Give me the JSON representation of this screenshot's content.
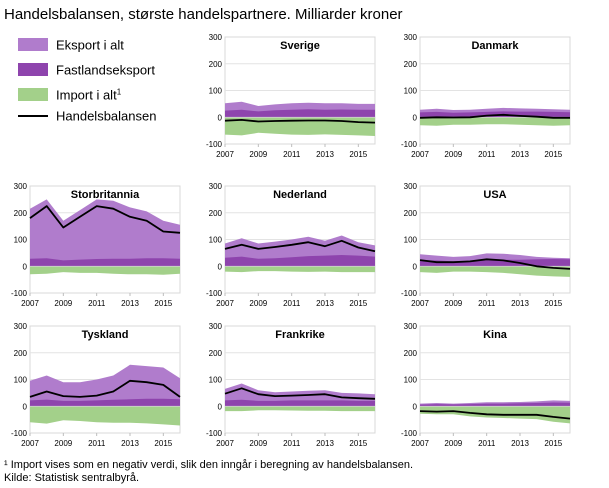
{
  "title": "Handelsbalansen, største handelspartnere. Milliarder kroner",
  "footnote": "¹ Import  vises som en negativ verdi, slik den inngår i beregning av handelsbalansen.",
  "source": "Kilde: Statistisk sentralbyrå.",
  "legend": [
    {
      "label": "Eksport i alt",
      "color": "#b07ccc"
    },
    {
      "label": "Fastlandseksport",
      "color": "#8e44ad"
    },
    {
      "label": "Import i alt",
      "sup": "1",
      "color": "#a3d08a"
    },
    {
      "label": "Handelsbalansen",
      "color": "#000000"
    }
  ],
  "chart_data": [
    {
      "type": "area",
      "title": "Sverige",
      "x": [
        2007,
        2008,
        2009,
        2010,
        2011,
        2012,
        2013,
        2014,
        2015,
        2016
      ],
      "ylim": [
        -100,
        300
      ],
      "yticks": [
        -100,
        0,
        100,
        200,
        300
      ],
      "xticks": [
        2007,
        2009,
        2011,
        2013,
        2015
      ],
      "series": [
        {
          "name": "Eksport i alt",
          "values": [
            52,
            58,
            42,
            48,
            52,
            54,
            52,
            52,
            50,
            50
          ]
        },
        {
          "name": "Fastlandseksport",
          "values": [
            25,
            28,
            22,
            26,
            28,
            30,
            28,
            29,
            28,
            28
          ]
        },
        {
          "name": "Import i alt",
          "values": [
            -65,
            -68,
            -58,
            -62,
            -65,
            -66,
            -64,
            -66,
            -68,
            -70
          ]
        },
        {
          "name": "Handelsbalansen",
          "values": [
            -13,
            -10,
            -16,
            -14,
            -13,
            -12,
            -12,
            -14,
            -18,
            -20
          ]
        }
      ]
    },
    {
      "type": "area",
      "title": "Danmark",
      "x": [
        2007,
        2008,
        2009,
        2010,
        2011,
        2012,
        2013,
        2014,
        2015,
        2016
      ],
      "ylim": [
        -100,
        300
      ],
      "yticks": [
        -100,
        0,
        100,
        200,
        300
      ],
      "xticks": [
        2007,
        2009,
        2011,
        2013,
        2015
      ],
      "series": [
        {
          "name": "Eksport i alt",
          "values": [
            28,
            32,
            27,
            28,
            32,
            35,
            33,
            32,
            30,
            28
          ]
        },
        {
          "name": "Fastlandseksport",
          "values": [
            18,
            20,
            17,
            18,
            20,
            22,
            21,
            21,
            20,
            19
          ]
        },
        {
          "name": "Import i alt",
          "values": [
            -30,
            -32,
            -28,
            -28,
            -26,
            -26,
            -28,
            -30,
            -32,
            -30
          ]
        },
        {
          "name": "Handelsbalansen",
          "values": [
            -2,
            0,
            -1,
            0,
            6,
            9,
            5,
            2,
            -2,
            -2
          ]
        }
      ]
    },
    {
      "type": "area",
      "title": "Storbritannia",
      "x": [
        2007,
        2008,
        2009,
        2010,
        2011,
        2012,
        2013,
        2014,
        2015,
        2016
      ],
      "ylim": [
        -100,
        300
      ],
      "yticks": [
        -100,
        0,
        100,
        200,
        300
      ],
      "xticks": [
        2007,
        2009,
        2011,
        2013,
        2015
      ],
      "series": [
        {
          "name": "Eksport i alt",
          "values": [
            215,
            250,
            170,
            210,
            250,
            245,
            220,
            205,
            170,
            155
          ]
        },
        {
          "name": "Fastlandseksport",
          "values": [
            28,
            30,
            22,
            25,
            27,
            28,
            28,
            30,
            30,
            28
          ]
        },
        {
          "name": "Import i alt",
          "values": [
            -30,
            -28,
            -22,
            -25,
            -25,
            -28,
            -30,
            -30,
            -32,
            -28
          ]
        },
        {
          "name": "Handelsbalansen",
          "values": [
            180,
            225,
            145,
            185,
            225,
            215,
            185,
            170,
            130,
            125
          ]
        }
      ]
    },
    {
      "type": "area",
      "title": "Nederland",
      "x": [
        2007,
        2008,
        2009,
        2010,
        2011,
        2012,
        2013,
        2014,
        2015,
        2016
      ],
      "ylim": [
        -100,
        300
      ],
      "yticks": [
        -100,
        0,
        100,
        200,
        300
      ],
      "xticks": [
        2007,
        2009,
        2011,
        2013,
        2015
      ],
      "series": [
        {
          "name": "Eksport i alt",
          "values": [
            85,
            105,
            85,
            92,
            100,
            110,
            95,
            115,
            90,
            78
          ]
        },
        {
          "name": "Fastlandseksport",
          "values": [
            32,
            36,
            28,
            30,
            34,
            38,
            40,
            42,
            40,
            36
          ]
        },
        {
          "name": "Import i alt",
          "values": [
            -20,
            -22,
            -18,
            -18,
            -20,
            -21,
            -20,
            -22,
            -22,
            -22
          ]
        },
        {
          "name": "Handelsbalansen",
          "values": [
            65,
            80,
            65,
            72,
            80,
            90,
            75,
            95,
            70,
            56
          ]
        }
      ]
    },
    {
      "type": "area",
      "title": "USA",
      "x": [
        2007,
        2008,
        2009,
        2010,
        2011,
        2012,
        2013,
        2014,
        2015,
        2016
      ],
      "ylim": [
        -100,
        300
      ],
      "yticks": [
        -100,
        0,
        100,
        200,
        300
      ],
      "xticks": [
        2007,
        2009,
        2011,
        2013,
        2015
      ],
      "series": [
        {
          "name": "Eksport i alt",
          "values": [
            45,
            40,
            35,
            38,
            48,
            47,
            42,
            35,
            32,
            30
          ]
        },
        {
          "name": "Fastlandseksport",
          "values": [
            22,
            22,
            18,
            20,
            22,
            24,
            24,
            26,
            27,
            26
          ]
        },
        {
          "name": "Import i alt",
          "values": [
            -22,
            -25,
            -20,
            -20,
            -22,
            -25,
            -30,
            -35,
            -38,
            -40
          ]
        },
        {
          "name": "Handelsbalansen",
          "values": [
            23,
            15,
            15,
            18,
            26,
            22,
            12,
            0,
            -6,
            -10
          ]
        }
      ]
    },
    {
      "type": "area",
      "title": "Tyskland",
      "x": [
        2007,
        2008,
        2009,
        2010,
        2011,
        2012,
        2013,
        2014,
        2015,
        2016
      ],
      "ylim": [
        -100,
        300
      ],
      "yticks": [
        -100,
        0,
        100,
        200,
        300
      ],
      "xticks": [
        2007,
        2009,
        2011,
        2013,
        2015
      ],
      "series": [
        {
          "name": "Eksport i alt",
          "values": [
            95,
            115,
            90,
            90,
            100,
            115,
            155,
            150,
            145,
            105
          ]
        },
        {
          "name": "Fastlandseksport",
          "values": [
            22,
            25,
            20,
            20,
            22,
            24,
            26,
            28,
            28,
            26
          ]
        },
        {
          "name": "Import i alt",
          "values": [
            -60,
            -65,
            -52,
            -55,
            -60,
            -62,
            -62,
            -64,
            -68,
            -72
          ]
        },
        {
          "name": "Handelsbalansen",
          "values": [
            35,
            55,
            38,
            35,
            40,
            55,
            95,
            90,
            80,
            35
          ]
        }
      ]
    },
    {
      "type": "area",
      "title": "Frankrike",
      "x": [
        2007,
        2008,
        2009,
        2010,
        2011,
        2012,
        2013,
        2014,
        2015,
        2016
      ],
      "ylim": [
        -100,
        300
      ],
      "yticks": [
        -100,
        0,
        100,
        200,
        300
      ],
      "xticks": [
        2007,
        2009,
        2011,
        2013,
        2015
      ],
      "series": [
        {
          "name": "Eksport i alt",
          "values": [
            65,
            85,
            60,
            52,
            55,
            58,
            60,
            50,
            48,
            45
          ]
        },
        {
          "name": "Fastlandseksport",
          "values": [
            22,
            24,
            20,
            20,
            22,
            22,
            22,
            22,
            20,
            20
          ]
        },
        {
          "name": "Import i alt",
          "values": [
            -18,
            -18,
            -15,
            -15,
            -16,
            -17,
            -17,
            -18,
            -18,
            -18
          ]
        },
        {
          "name": "Handelsbalansen",
          "values": [
            47,
            67,
            45,
            38,
            40,
            42,
            45,
            33,
            30,
            28
          ]
        }
      ]
    },
    {
      "type": "area",
      "title": "Kina",
      "x": [
        2007,
        2008,
        2009,
        2010,
        2011,
        2012,
        2013,
        2014,
        2015,
        2016
      ],
      "ylim": [
        -100,
        300
      ],
      "yticks": [
        -100,
        0,
        100,
        200,
        300
      ],
      "xticks": [
        2007,
        2009,
        2011,
        2013,
        2015
      ],
      "series": [
        {
          "name": "Eksport i alt",
          "values": [
            10,
            12,
            10,
            12,
            15,
            15,
            16,
            18,
            22,
            20
          ]
        },
        {
          "name": "Fastlandseksport",
          "values": [
            6,
            8,
            7,
            8,
            10,
            10,
            11,
            12,
            14,
            13
          ]
        },
        {
          "name": "Import i alt",
          "values": [
            -28,
            -30,
            -30,
            -38,
            -42,
            -44,
            -46,
            -48,
            -58,
            -64
          ]
        },
        {
          "name": "Handelsbalansen",
          "values": [
            -18,
            -20,
            -18,
            -25,
            -30,
            -32,
            -32,
            -32,
            -40,
            -46
          ]
        }
      ]
    }
  ]
}
